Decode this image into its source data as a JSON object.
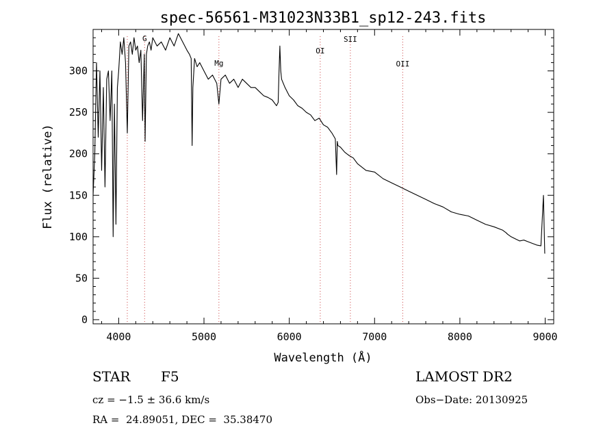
{
  "chart_data": {
    "type": "line",
    "title": "spec-56561-M31023N33B1_sp12-243.fits",
    "xlabel": "Wavelength (Å)",
    "ylabel": "Flux (relative)",
    "xlim": [
      3700,
      9100
    ],
    "ylim": [
      -5,
      350
    ],
    "x_ticks": [
      4000,
      5000,
      6000,
      7000,
      8000,
      9000
    ],
    "y_ticks": [
      0,
      50,
      100,
      150,
      200,
      250,
      300
    ],
    "series": [
      {
        "name": "spectrum",
        "color": "#000000",
        "x": [
          3700,
          3720,
          3740,
          3760,
          3780,
          3800,
          3820,
          3840,
          3860,
          3880,
          3900,
          3920,
          3935,
          3950,
          3968,
          3985,
          4000,
          4020,
          4040,
          4060,
          4080,
          4101,
          4120,
          4140,
          4160,
          4180,
          4200,
          4220,
          4240,
          4260,
          4280,
          4300,
          4310,
          4325,
          4340,
          4360,
          4380,
          4400,
          4450,
          4500,
          4550,
          4600,
          4650,
          4700,
          4750,
          4800,
          4830,
          4850,
          4861,
          4870,
          4890,
          4920,
          4950,
          5000,
          5050,
          5100,
          5150,
          5175,
          5200,
          5250,
          5300,
          5350,
          5400,
          5450,
          5500,
          5550,
          5600,
          5650,
          5700,
          5750,
          5800,
          5850,
          5870,
          5880,
          5890,
          5893,
          5900,
          5910,
          5950,
          6000,
          6050,
          6100,
          6150,
          6200,
          6250,
          6300,
          6350,
          6400,
          6450,
          6500,
          6540,
          6555,
          6563,
          6570,
          6600,
          6650,
          6700,
          6750,
          6800,
          6900,
          7000,
          7100,
          7200,
          7300,
          7400,
          7500,
          7600,
          7700,
          7800,
          7900,
          8000,
          8100,
          8200,
          8300,
          8400,
          8500,
          8540,
          8560,
          8600,
          8640,
          8660,
          8700,
          8750,
          8800,
          8850,
          8900,
          8950,
          8980,
          8995,
          9000
        ],
        "y": [
          150,
          200,
          310,
          220,
          300,
          180,
          280,
          160,
          290,
          300,
          240,
          300,
          100,
          260,
          115,
          280,
          300,
          335,
          320,
          340,
          310,
          225,
          330,
          335,
          320,
          340,
          325,
          330,
          310,
          325,
          240,
          320,
          215,
          320,
          330,
          335,
          325,
          340,
          330,
          335,
          325,
          340,
          330,
          345,
          335,
          325,
          320,
          315,
          210,
          280,
          315,
          305,
          310,
          300,
          290,
          295,
          285,
          260,
          290,
          295,
          285,
          290,
          280,
          290,
          285,
          280,
          280,
          275,
          270,
          268,
          265,
          258,
          262,
          300,
          330,
          320,
          300,
          290,
          280,
          270,
          265,
          258,
          255,
          250,
          247,
          240,
          243,
          235,
          232,
          225,
          218,
          175,
          215,
          210,
          208,
          202,
          198,
          195,
          188,
          180,
          178,
          170,
          165,
          160,
          155,
          150,
          145,
          140,
          136,
          130,
          127,
          125,
          120,
          115,
          112,
          108,
          105,
          103,
          100,
          98,
          97,
          95,
          96,
          94,
          92,
          90,
          89,
          150,
          80,
          80
        ]
      }
    ],
    "annotations": [
      {
        "label": "G",
        "x": 4304
      },
      {
        "label": "Mg",
        "x": 5175
      },
      {
        "label": "OI",
        "x": 6363
      },
      {
        "label": "SII",
        "x": 6716
      },
      {
        "label": "OII",
        "x": 7330
      }
    ],
    "vlines": [
      4101,
      4304,
      5175,
      6363,
      6716,
      7330
    ]
  },
  "info": {
    "object_class": "STAR",
    "subclass": "F5",
    "survey": "LAMOST DR2",
    "redshift_line": "cz = −1.5 ± 36.6 km/s",
    "obs_date_line": "Obs−Date: 20130925",
    "coords_line": "RA =  24.89051, DEC =  35.38470"
  }
}
